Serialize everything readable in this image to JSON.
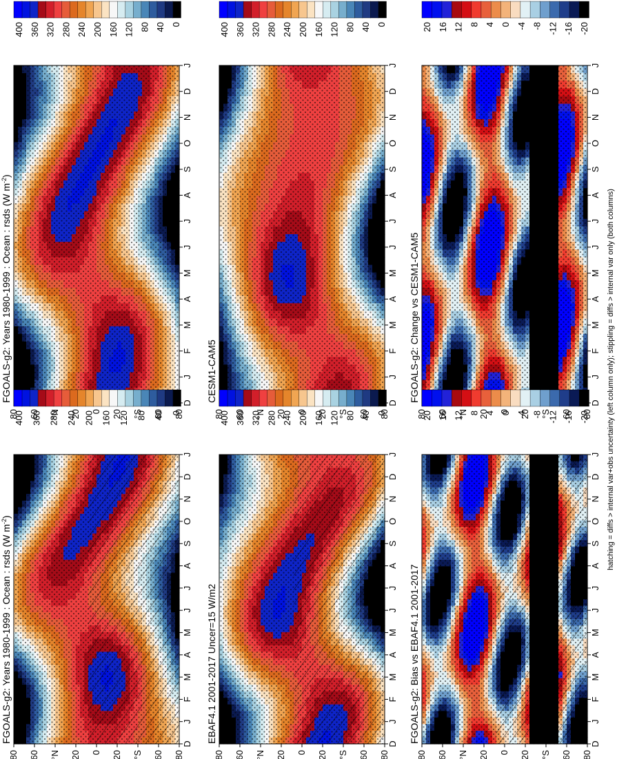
{
  "figure": {
    "footnote": "hatching = diffs > internal var+obs uncertainty (left column only); stippling = diffs > internal var only (both columns)"
  },
  "colors": {
    "abs_scale": [
      "#000000",
      "#0b1a4f",
      "#1f3a82",
      "#2e5c9e",
      "#4a86b7",
      "#77aecd",
      "#a9d2e1",
      "#d6ecf1",
      "#f7f7f7",
      "#fbe3c2",
      "#f7c68e",
      "#f0a552",
      "#e5852b",
      "#dc6a1e",
      "#e65c3a",
      "#ef4040",
      "#d21f2a",
      "#a50b18",
      "#0e24c8",
      "#0012e0",
      "#0000ff"
    ],
    "diff_scale": [
      "#000000",
      "#0a1a55",
      "#1f3d8a",
      "#3b6aad",
      "#6f9fcd",
      "#a9cfe3",
      "#e2f1f5",
      "#f9dcc0",
      "#f3b37a",
      "#ec8c4a",
      "#e8603b",
      "#f03b2f",
      "#d40f14",
      "#a80a10",
      "#2222d8",
      "#0010ee",
      "#0000ff"
    ]
  },
  "chart_data": [
    {
      "id": "panel-1",
      "type": "heatmap",
      "title": "FGOALS-g2: Years 1980-1999 : Ocean : rsds (W m",
      "title_sup": "-2",
      "title_tail": ")",
      "months": [
        "D",
        "J",
        "F",
        "M",
        "A",
        "M",
        "J",
        "J",
        "A",
        "S",
        "O",
        "N",
        "D",
        "J"
      ],
      "lat_ticks": [
        "80",
        "60",
        "°N",
        "20",
        "0",
        "20",
        "°S",
        "60",
        "80"
      ],
      "colorbar": {
        "ticks": [
          "400",
          "360",
          "280",
          "240",
          "200",
          "160",
          "120",
          "80",
          "40",
          "0"
        ]
      },
      "kind": "abs",
      "hatched": true
    },
    {
      "id": "panel-2",
      "type": "heatmap",
      "title": "FGOALS-g2: Years 1980-1999 : Ocean : rsds (W m",
      "title_sup": "-2",
      "title_tail": ")",
      "months": [
        "D",
        "J",
        "F",
        "M",
        "A",
        "M",
        "J",
        "J",
        "A",
        "S",
        "O",
        "N",
        "D",
        "J"
      ],
      "lat_ticks": [
        "80",
        "60",
        "°N",
        "20",
        "0",
        "20",
        "°S",
        "60",
        "80"
      ],
      "colorbar": {
        "ticks": [
          "400",
          "360",
          "320",
          "280",
          "240",
          "200",
          "160",
          "120",
          "80",
          "40",
          "0"
        ]
      },
      "kind": "abs",
      "hatched": false
    },
    {
      "id": "panel-3",
      "type": "heatmap",
      "title": "EBAF4.1 2001-2017 Uncer=15 W/m2",
      "title_sup": "",
      "title_tail": "",
      "months": [
        "D",
        "J",
        "F",
        "M",
        "A",
        "M",
        "J",
        "J",
        "A",
        "S",
        "O",
        "N",
        "D",
        "J"
      ],
      "lat_ticks": [
        "80",
        "60",
        "°N",
        "20",
        "0",
        "20",
        "°S",
        "60",
        "80"
      ],
      "colorbar": {
        "ticks": [
          "400",
          "360",
          "320",
          "280",
          "240",
          "200",
          "160",
          "120",
          "80",
          "40",
          "0"
        ]
      },
      "kind": "abs",
      "hatched": true
    },
    {
      "id": "panel-4",
      "type": "heatmap",
      "title": "CESM1-CAM5",
      "title_sup": "",
      "title_tail": "",
      "months": [
        "D",
        "J",
        "F",
        "M",
        "A",
        "M",
        "J",
        "J",
        "A",
        "S",
        "O",
        "N",
        "D",
        "J"
      ],
      "lat_ticks": [
        "80",
        "60",
        "°N",
        "20",
        "0",
        "20",
        "°S",
        "60",
        "80"
      ],
      "colorbar": {
        "ticks": [
          "400",
          "360",
          "320",
          "280",
          "240",
          "200",
          "160",
          "120",
          "80",
          "40",
          "0"
        ]
      },
      "kind": "abs",
      "hatched": false
    },
    {
      "id": "panel-5",
      "type": "heatmap",
      "title": "FGOALS-g2: Bias vs EBAF4.1 2001-2017",
      "title_sup": "",
      "title_tail": "",
      "months": [
        "D",
        "J",
        "F",
        "M",
        "A",
        "M",
        "J",
        "J",
        "A",
        "S",
        "O",
        "N",
        "D",
        "J"
      ],
      "lat_ticks": [
        "80",
        "60",
        "°N",
        "20",
        "0",
        "20",
        "°S",
        "60",
        "80"
      ],
      "colorbar": {
        "ticks": [
          "20",
          "16",
          "12",
          "8",
          "4",
          "0",
          "-4",
          "-8",
          "-12",
          "-16",
          "-20"
        ]
      },
      "kind": "diff",
      "hatched": true
    },
    {
      "id": "panel-6",
      "type": "heatmap",
      "title": "FGOALS-g2: Change vs CESM1-CAM5",
      "title_sup": "",
      "title_tail": "",
      "months": [
        "D",
        "J",
        "F",
        "M",
        "A",
        "M",
        "J",
        "J",
        "A",
        "S",
        "O",
        "N",
        "D",
        "J"
      ],
      "lat_ticks": [
        "80",
        "60",
        "°N",
        "20",
        "0",
        "20",
        "°S",
        "60",
        "80"
      ],
      "colorbar": {
        "ticks": [
          "20",
          "16",
          "12",
          "8",
          "4",
          "0",
          "-4",
          "-8",
          "-12",
          "-16",
          "-20"
        ]
      },
      "kind": "diff",
      "hatched": false
    }
  ]
}
